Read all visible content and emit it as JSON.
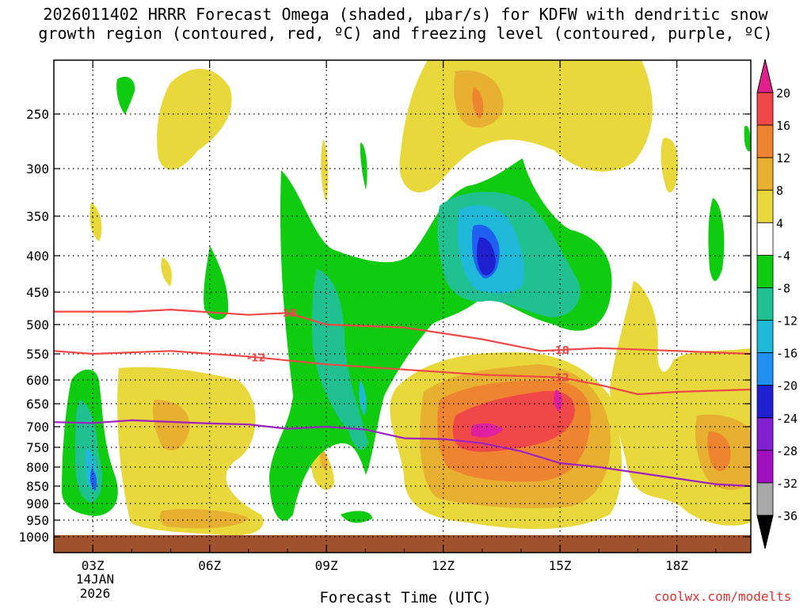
{
  "title_line1": "2026011402 HRRR Forecast Omega (shaded, μbar/s) for KDFW with dendritic snow",
  "title_line2": "growth region (contoured, red, ºC) and freezing level (contoured, purple, ºC)",
  "x_axis_label": "Forecast Time (UTC)",
  "x_date_line1": "14JAN",
  "x_date_line2": "2026",
  "credit": "coolwx.com/modelts",
  "colors": {
    "ground": "#a0522d",
    "yellow": "#e8d83c",
    "lightorange": "#e8b030",
    "orange": "#ee8430",
    "red": "#f04848",
    "magenta": "#e020a0",
    "green": "#10cc10",
    "teal": "#20c090",
    "cyan": "#20b8d8",
    "blue": "#2060f0",
    "darkblue": "#2020d0",
    "isotherm": "#f04848",
    "freezing": "#a020c0"
  },
  "chart_data": {
    "type": "heatmap",
    "x_ticks": [
      "03Z",
      "06Z",
      "09Z",
      "12Z",
      "15Z",
      "18Z"
    ],
    "x_tick_hours": [
      3,
      6,
      9,
      12,
      15,
      18
    ],
    "x_range_hours": [
      2,
      19.9
    ],
    "y_ticks": [
      250,
      300,
      350,
      400,
      450,
      500,
      550,
      600,
      650,
      700,
      750,
      800,
      850,
      900,
      950,
      1000
    ],
    "y_axis_scale": "height-based pressure (hPa)",
    "colorbar": {
      "labels": [
        "20",
        "16",
        "12",
        "8",
        "4",
        "-4",
        "-8",
        "-12",
        "-16",
        "-20",
        "-24",
        "-28",
        "-32",
        "-36"
      ],
      "colors": [
        "#f04848",
        "#ee8430",
        "#e8b030",
        "#e8d83c",
        "#ffffff",
        "#10cc10",
        "#20c090",
        "#20b8d8",
        "#2090f0",
        "#2020d0",
        "#8020d0",
        "#a010c0",
        "#a8a8a8"
      ],
      "top_arrow_color": "#e0208c",
      "bottom_arrow_color": "#000000"
    },
    "contours": [
      {
        "label": "-18",
        "color": "#f04848",
        "points": [
          [
            2,
            480
          ],
          [
            4,
            480
          ],
          [
            5,
            477
          ],
          [
            7,
            485
          ],
          [
            8,
            482
          ],
          [
            9,
            500
          ],
          [
            11,
            505
          ],
          [
            13,
            525
          ],
          [
            14.5,
            545
          ],
          [
            16,
            540
          ],
          [
            18,
            545
          ],
          [
            19.9,
            550
          ]
        ]
      },
      {
        "label": "-12",
        "color": "#f04848",
        "points": [
          [
            2,
            545
          ],
          [
            3,
            550
          ],
          [
            5,
            545
          ],
          [
            7,
            555
          ],
          [
            9,
            570
          ],
          [
            11,
            580
          ],
          [
            13,
            590
          ],
          [
            15,
            595
          ],
          [
            16,
            610
          ],
          [
            17,
            630
          ],
          [
            18,
            625
          ],
          [
            19.9,
            620
          ]
        ]
      },
      {
        "label": "",
        "color": "#a020c0",
        "points": [
          [
            2,
            690
          ],
          [
            3,
            692
          ],
          [
            4,
            686
          ],
          [
            6,
            693
          ],
          [
            7,
            695
          ],
          [
            8,
            705
          ],
          [
            9,
            700
          ],
          [
            10,
            707
          ],
          [
            11,
            728
          ],
          [
            12,
            730
          ],
          [
            13,
            740
          ],
          [
            14,
            760
          ],
          [
            15,
            790
          ],
          [
            16,
            800
          ],
          [
            18,
            830
          ],
          [
            19,
            845
          ],
          [
            19.9,
            850
          ]
        ]
      }
    ]
  }
}
